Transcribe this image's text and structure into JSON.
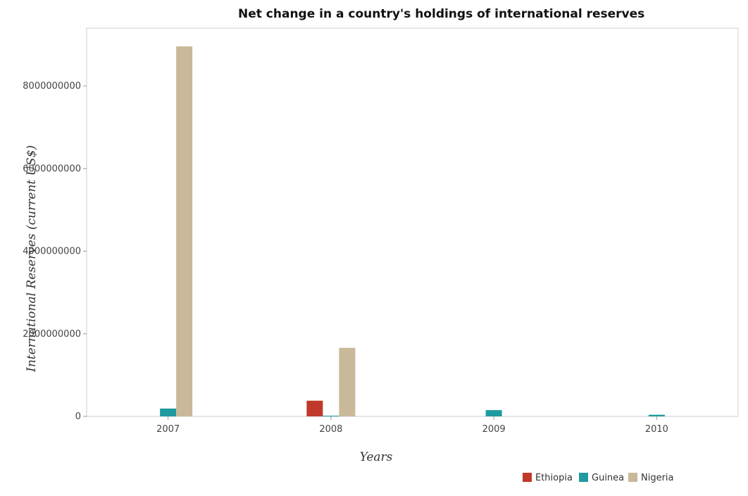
{
  "chart_data": {
    "type": "bar",
    "title": "Net change in a country's holdings of international reserves",
    "xlabel": "Years",
    "ylabel": "International Reserves (current US$)",
    "categories": [
      "2007",
      "2008",
      "2009",
      "2010"
    ],
    "series": [
      {
        "name": "Ethiopia",
        "color": "#c0392b",
        "values": [
          0,
          380000000,
          0,
          0
        ]
      },
      {
        "name": "Guinea",
        "color": "#1f9aa0",
        "values": [
          190000000,
          15000000,
          152000000,
          40000000
        ]
      },
      {
        "name": "Nigeria",
        "color": "#c9b99a",
        "values": [
          8960000000,
          1660000000,
          0,
          0
        ]
      }
    ],
    "yticks": [
      0,
      2000000000,
      4000000000,
      6000000000,
      8000000000
    ],
    "ytick_labels": [
      "0",
      "2000000000",
      "4000000000",
      "6000000000",
      "8000000000"
    ],
    "ylim": [
      0,
      9400000000
    ],
    "grid": false,
    "legend_position": "bottom-right"
  }
}
